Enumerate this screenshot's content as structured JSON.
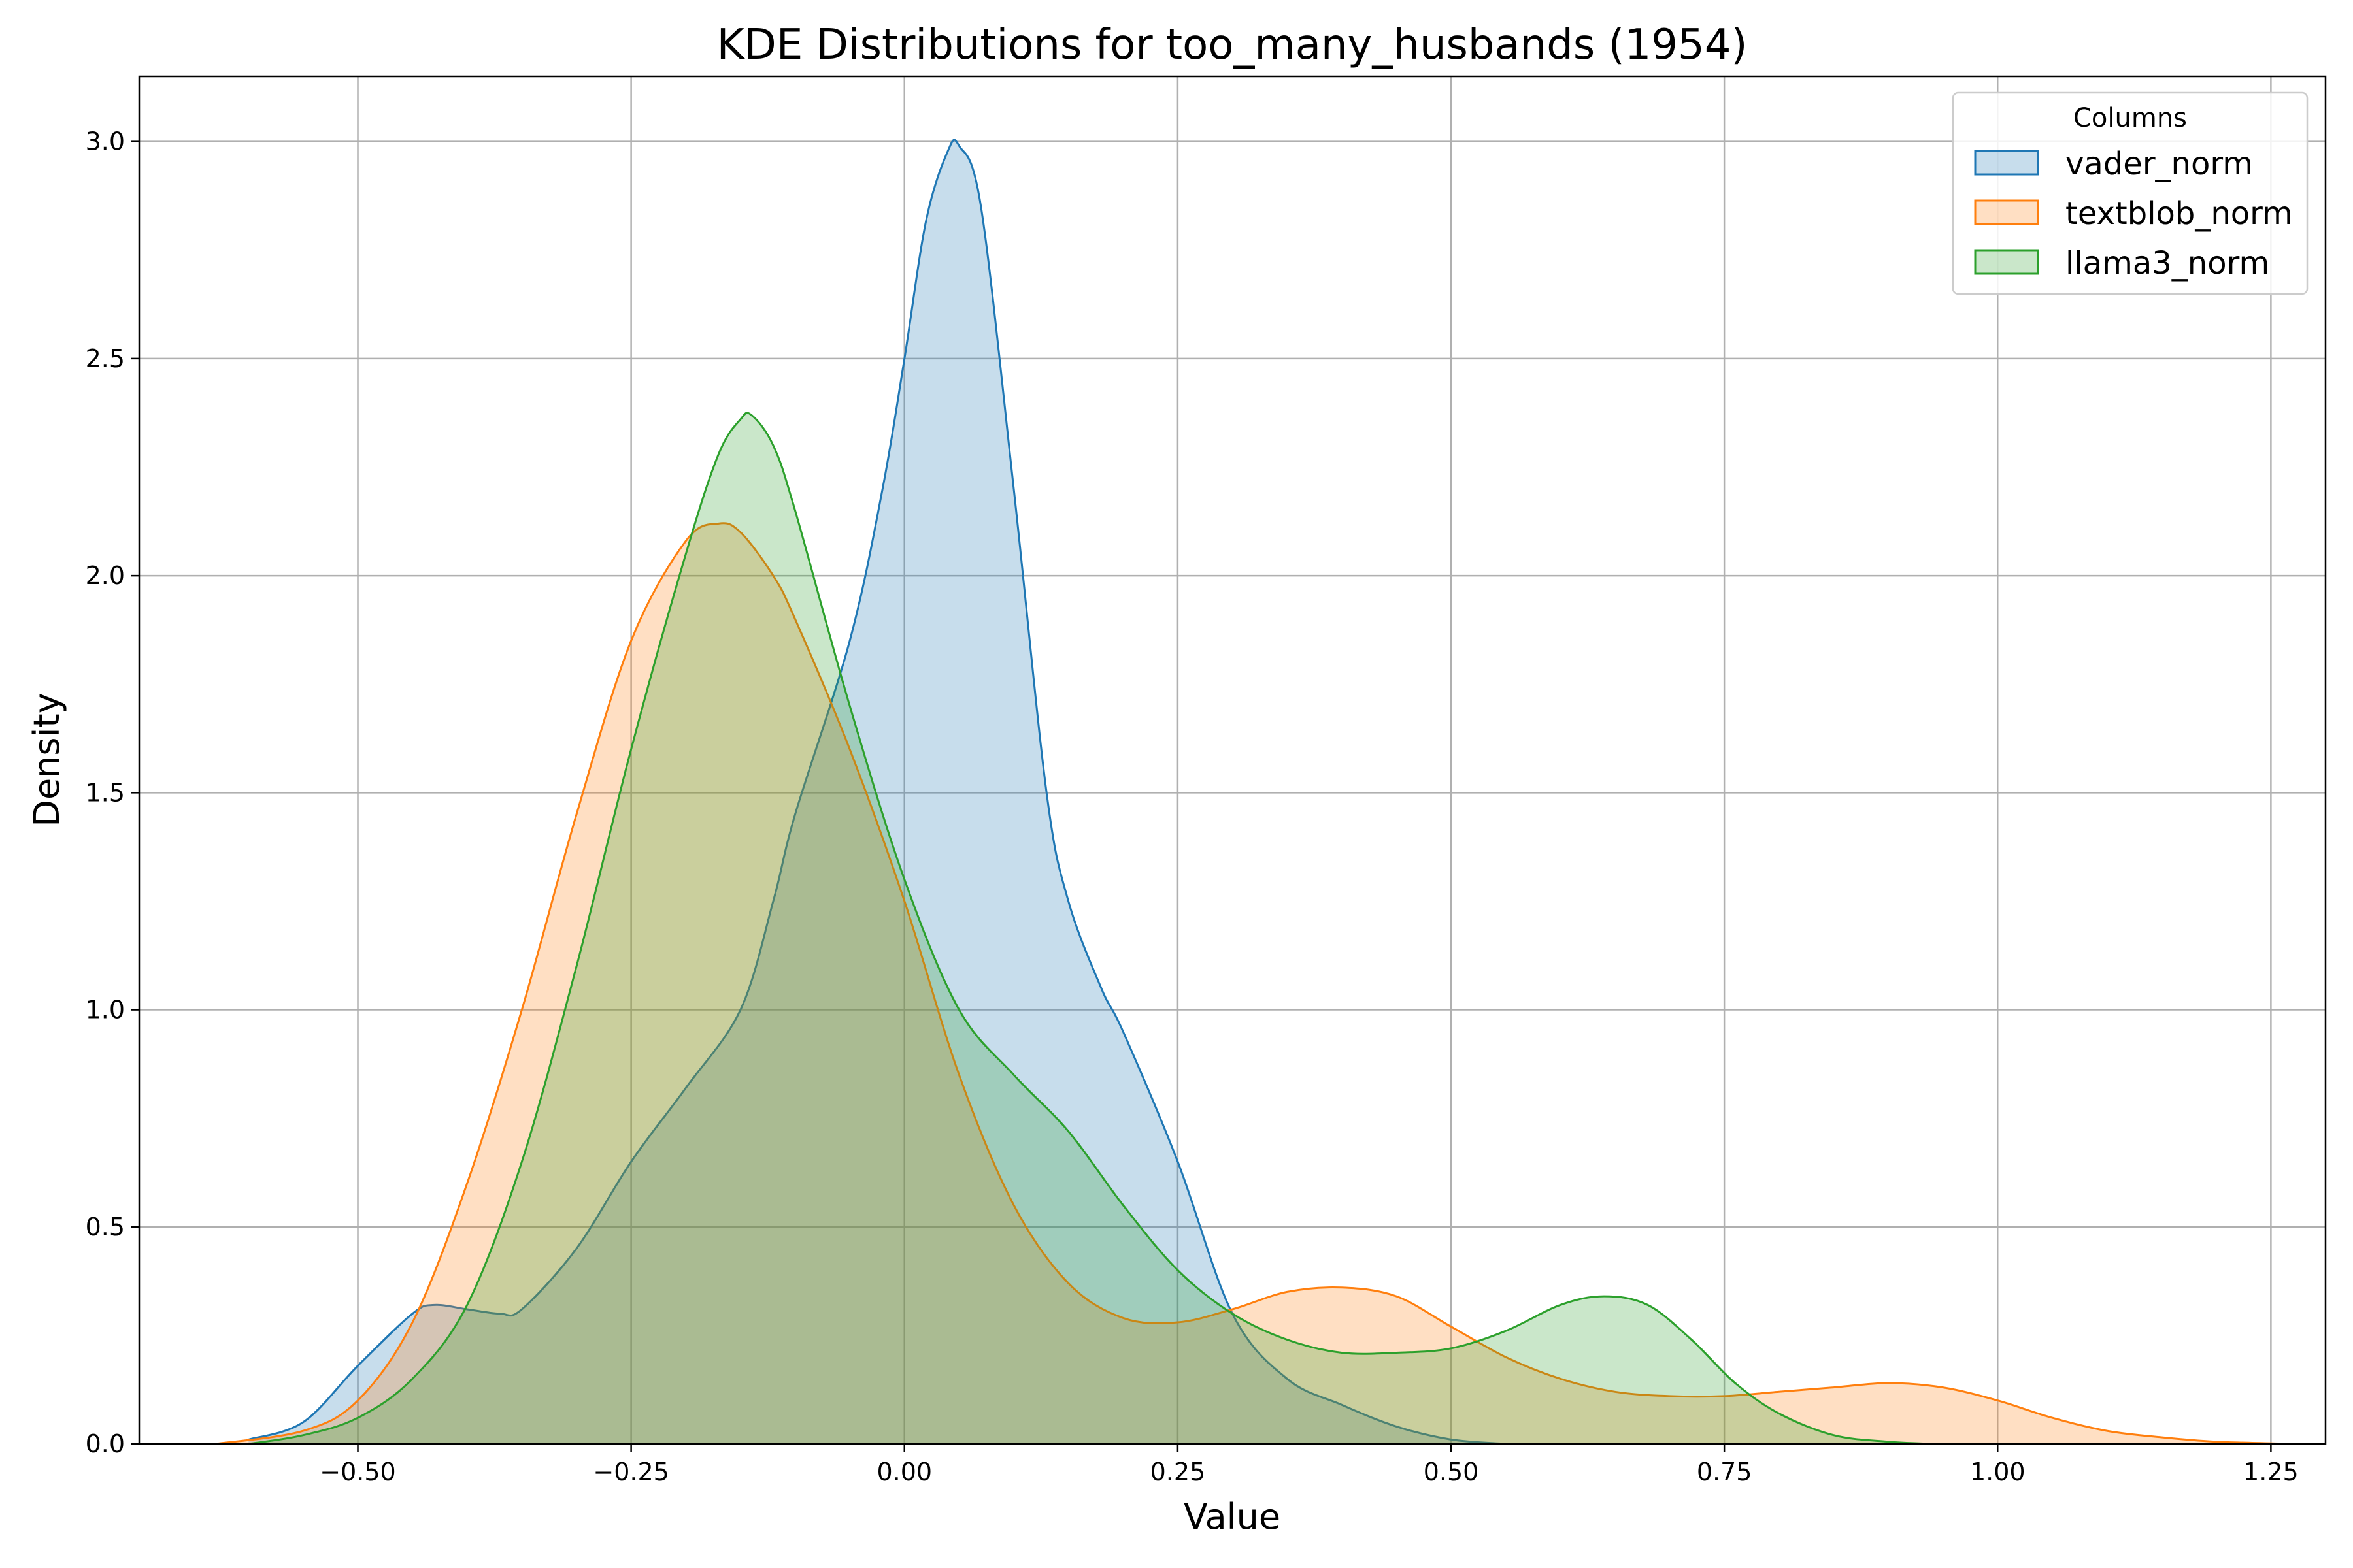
{
  "chart_data": {
    "type": "area",
    "title": "KDE Distributions for too_many_husbands (1954)",
    "xlabel": "Value",
    "ylabel": "Density",
    "xlim": [
      -0.7,
      1.3
    ],
    "ylim": [
      0,
      3.15
    ],
    "xticks": [
      -0.5,
      -0.25,
      0.0,
      0.25,
      0.5,
      0.75,
      1.0,
      1.25
    ],
    "xtick_labels": [
      "−0.50",
      "−0.25",
      "0.00",
      "0.25",
      "0.50",
      "0.75",
      "1.00",
      "1.25"
    ],
    "yticks": [
      0,
      0.5,
      1.0,
      1.5,
      2.0,
      2.5,
      3.0
    ],
    "ytick_labels": [
      "0.0",
      "0.5",
      "1.0",
      "1.5",
      "2.0",
      "2.5",
      "3.0"
    ],
    "grid": true,
    "legend": {
      "title": "Columns",
      "position": "top-right"
    },
    "series": [
      {
        "name": "vader_norm",
        "color": "#1f77b4",
        "x": [
          -0.6,
          -0.55,
          -0.5,
          -0.45,
          -0.43,
          -0.4,
          -0.37,
          -0.35,
          -0.3,
          -0.25,
          -0.2,
          -0.15,
          -0.12,
          -0.1,
          -0.05,
          -0.02,
          0.0,
          0.02,
          0.04,
          0.05,
          0.07,
          0.1,
          0.13,
          0.15,
          0.18,
          0.2,
          0.25,
          0.3,
          0.35,
          0.4,
          0.45,
          0.5,
          0.55
        ],
        "y": [
          0.01,
          0.05,
          0.18,
          0.3,
          0.32,
          0.31,
          0.3,
          0.31,
          0.45,
          0.65,
          0.82,
          1.0,
          1.25,
          1.45,
          1.85,
          2.2,
          2.5,
          2.82,
          2.98,
          2.99,
          2.85,
          2.2,
          1.5,
          1.25,
          1.05,
          0.95,
          0.65,
          0.3,
          0.15,
          0.09,
          0.04,
          0.01,
          0.0
        ]
      },
      {
        "name": "textblob_norm",
        "color": "#ff7f0e",
        "x": [
          -0.63,
          -0.55,
          -0.5,
          -0.45,
          -0.4,
          -0.35,
          -0.3,
          -0.25,
          -0.2,
          -0.17,
          -0.15,
          -0.12,
          -0.1,
          -0.05,
          0.0,
          0.05,
          0.1,
          0.15,
          0.2,
          0.25,
          0.3,
          0.35,
          0.4,
          0.45,
          0.5,
          0.55,
          0.6,
          0.65,
          0.7,
          0.75,
          0.8,
          0.85,
          0.9,
          0.95,
          1.0,
          1.05,
          1.1,
          1.15,
          1.2,
          1.27
        ],
        "y": [
          0.0,
          0.03,
          0.1,
          0.28,
          0.6,
          1.0,
          1.45,
          1.85,
          2.08,
          2.12,
          2.1,
          2.0,
          1.9,
          1.6,
          1.25,
          0.85,
          0.55,
          0.37,
          0.29,
          0.28,
          0.31,
          0.35,
          0.36,
          0.34,
          0.27,
          0.2,
          0.15,
          0.12,
          0.11,
          0.11,
          0.12,
          0.13,
          0.14,
          0.13,
          0.1,
          0.06,
          0.03,
          0.015,
          0.005,
          0.0
        ]
      },
      {
        "name": "llama3_norm",
        "color": "#2ca02c",
        "x": [
          -0.6,
          -0.55,
          -0.5,
          -0.45,
          -0.4,
          -0.35,
          -0.3,
          -0.25,
          -0.2,
          -0.17,
          -0.15,
          -0.14,
          -0.12,
          -0.1,
          -0.05,
          0.0,
          0.05,
          0.1,
          0.15,
          0.2,
          0.25,
          0.3,
          0.35,
          0.4,
          0.45,
          0.5,
          0.55,
          0.6,
          0.64,
          0.68,
          0.72,
          0.76,
          0.8,
          0.85,
          0.9,
          0.94
        ],
        "y": [
          0.0,
          0.02,
          0.06,
          0.15,
          0.32,
          0.65,
          1.1,
          1.6,
          2.05,
          2.28,
          2.36,
          2.37,
          2.3,
          2.15,
          1.7,
          1.3,
          1.0,
          0.85,
          0.72,
          0.55,
          0.4,
          0.3,
          0.24,
          0.21,
          0.21,
          0.22,
          0.26,
          0.32,
          0.34,
          0.32,
          0.24,
          0.14,
          0.07,
          0.02,
          0.005,
          0.0
        ]
      }
    ]
  }
}
